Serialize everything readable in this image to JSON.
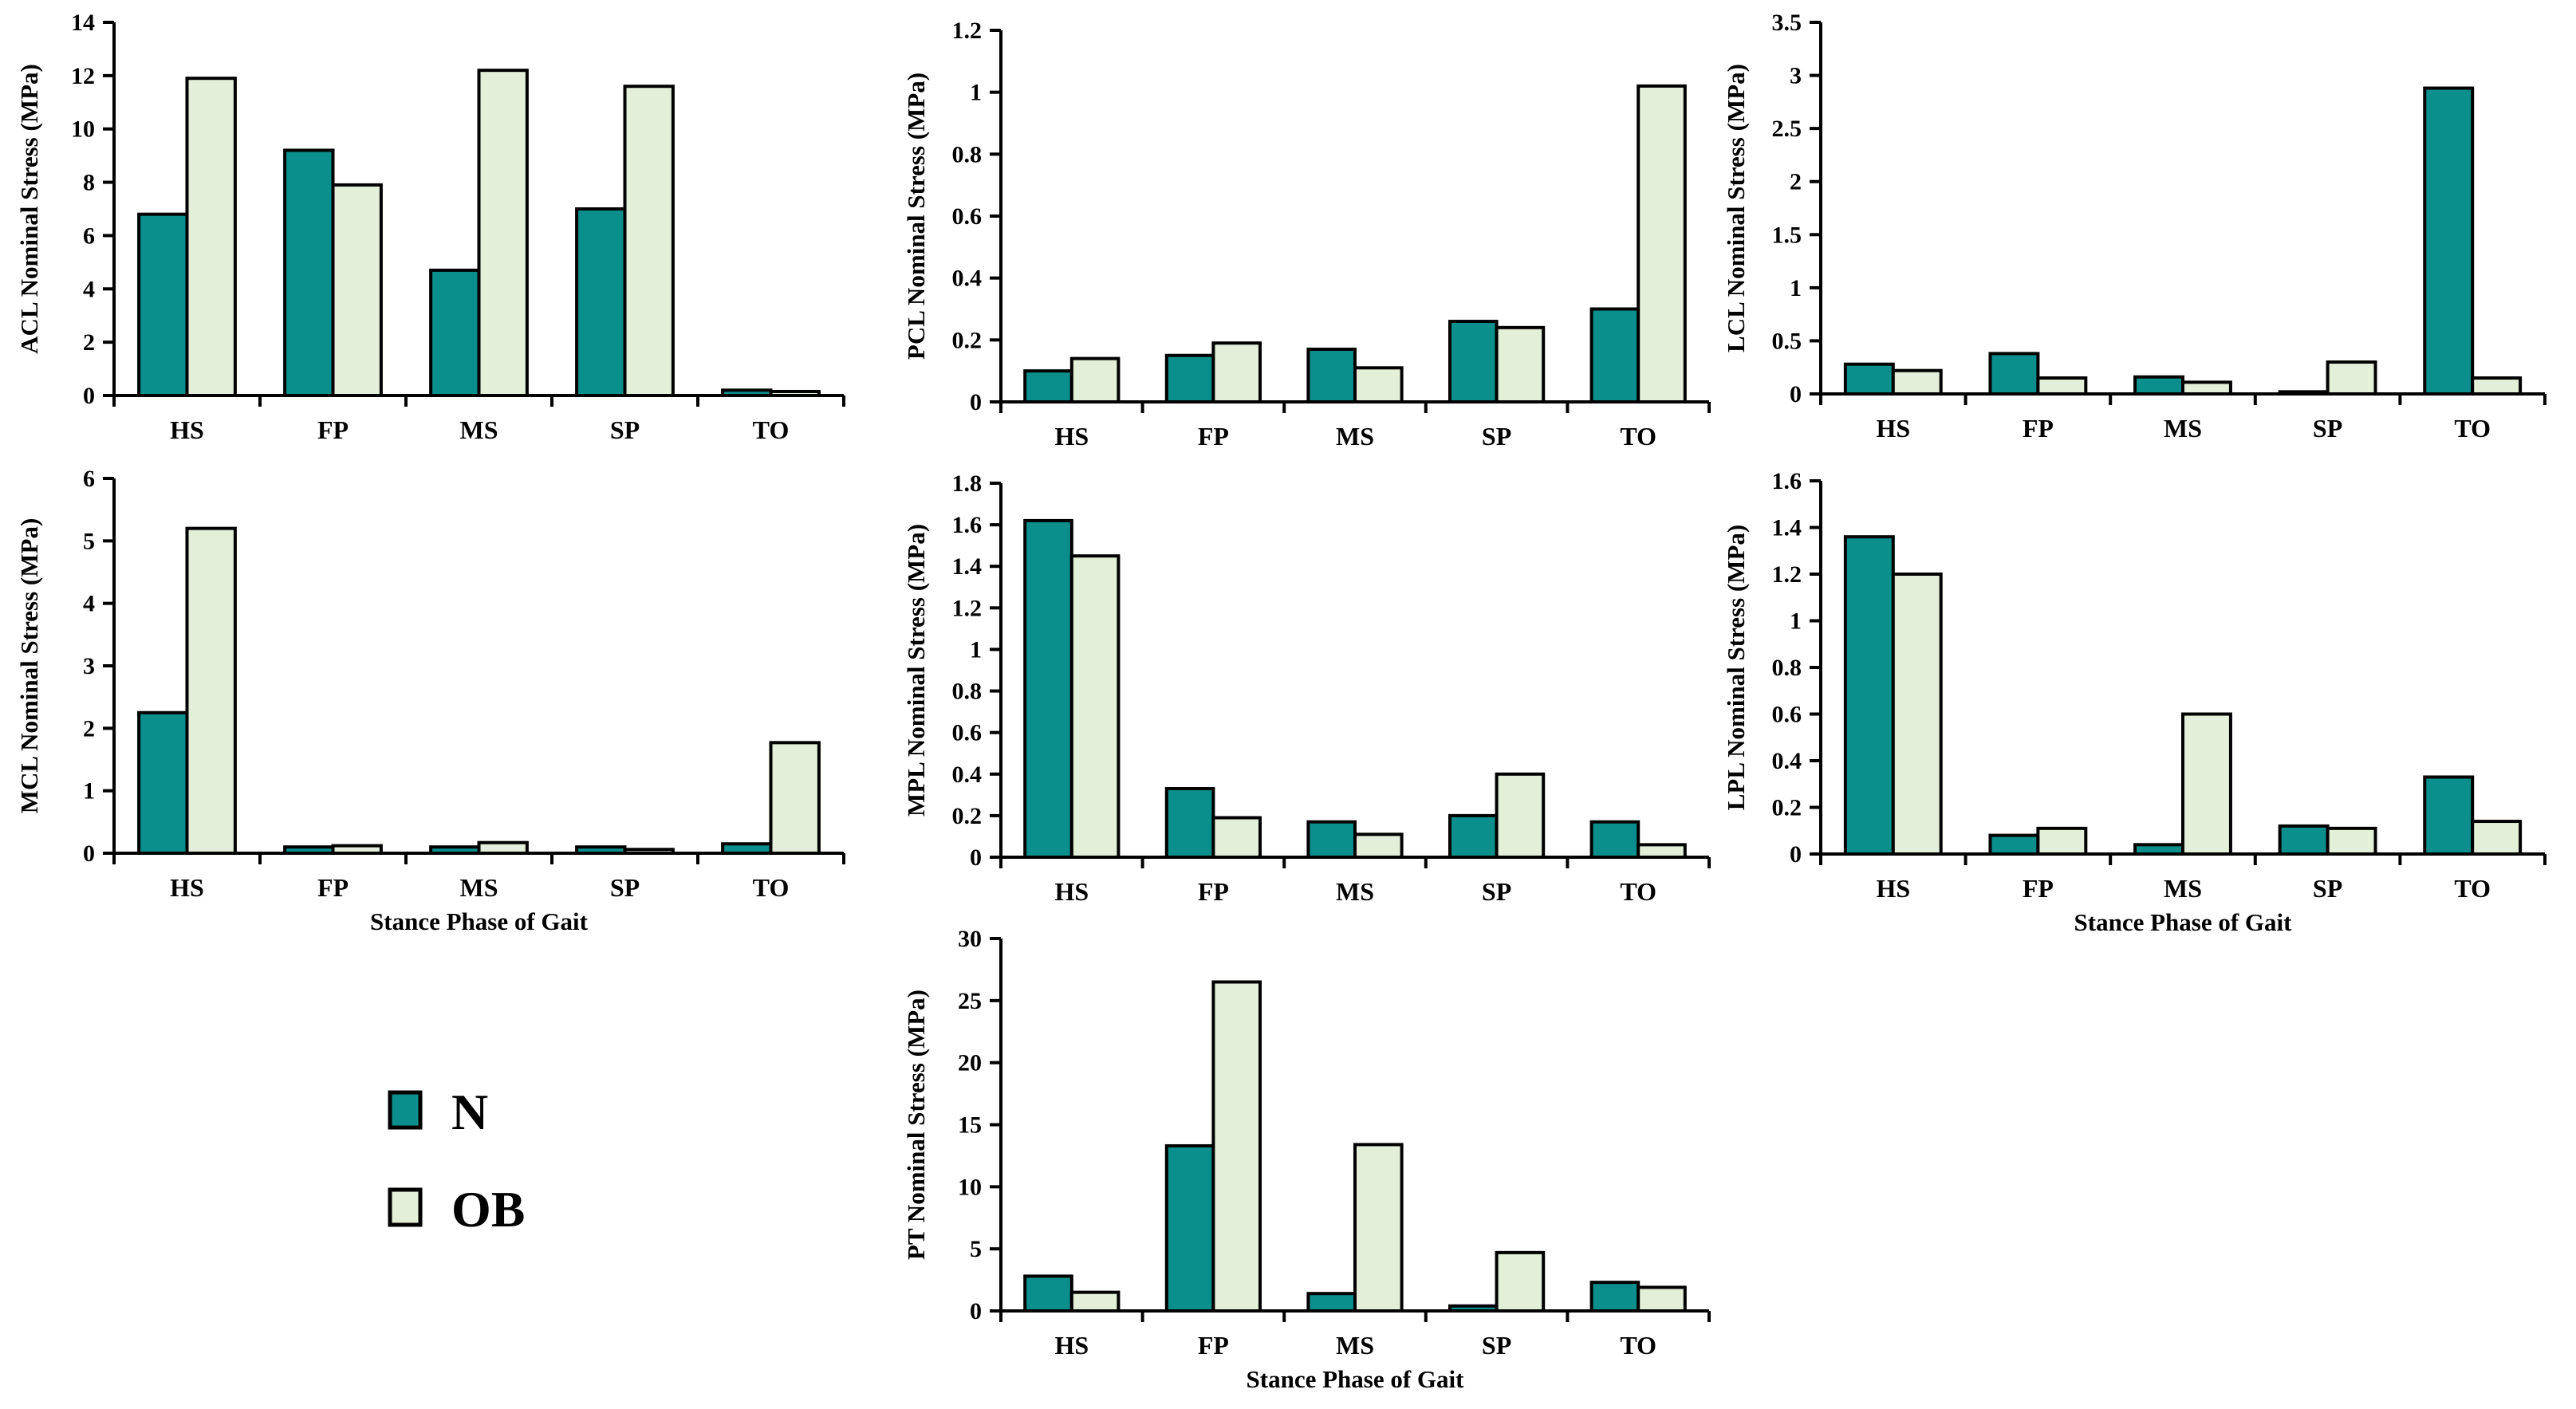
{
  "colors": {
    "N": "#0b8f8c",
    "OB": "#e3efd8",
    "stroke": "#000000"
  },
  "legend": {
    "entries": [
      {
        "name": "N",
        "color": "#0b8f8c"
      },
      {
        "name": "OB",
        "color": "#e3efd8"
      }
    ]
  },
  "chart_data": [
    {
      "id": "acl",
      "type": "bar",
      "ylabel": "ACL Nominal Stress (MPa)",
      "xlabel": "",
      "categories": [
        "HS",
        "FP",
        "MS",
        "SP",
        "TO"
      ],
      "ylim": [
        0,
        14
      ],
      "yticks": [
        0,
        2,
        4,
        6,
        8,
        10,
        12,
        14
      ],
      "ytick_labels": [
        "0",
        "2",
        "4",
        "6",
        "8",
        "10",
        "12",
        "14"
      ],
      "series": [
        {
          "name": "N",
          "values": [
            6.8,
            9.2,
            4.7,
            7.0,
            0.2
          ]
        },
        {
          "name": "OB",
          "values": [
            11.9,
            7.9,
            12.2,
            11.6,
            0.15
          ]
        }
      ]
    },
    {
      "id": "pcl",
      "type": "bar",
      "ylabel": "PCL Nominal Stress (MPa)",
      "xlabel": "",
      "categories": [
        "HS",
        "FP",
        "MS",
        "SP",
        "TO"
      ],
      "ylim": [
        0,
        1.2
      ],
      "yticks": [
        0,
        0.2,
        0.4,
        0.6,
        0.8,
        1,
        1.2
      ],
      "ytick_labels": [
        "0",
        "0.2",
        "0.4",
        "0.6",
        "0.8",
        "1",
        "1.2"
      ],
      "series": [
        {
          "name": "N",
          "values": [
            0.1,
            0.15,
            0.17,
            0.26,
            0.3
          ]
        },
        {
          "name": "OB",
          "values": [
            0.14,
            0.19,
            0.11,
            0.24,
            1.02
          ]
        }
      ]
    },
    {
      "id": "lcl",
      "type": "bar",
      "ylabel": "LCL Nominal Stress (MPa)",
      "xlabel": "",
      "categories": [
        "HS",
        "FP",
        "MS",
        "SP",
        "TO"
      ],
      "ylim": [
        0,
        3.5
      ],
      "yticks": [
        0,
        0.5,
        1,
        1.5,
        2,
        2.5,
        3,
        3.5
      ],
      "ytick_labels": [
        "0",
        "0.5",
        "1",
        "1.5",
        "2",
        "2.5",
        "3",
        "3.5"
      ],
      "series": [
        {
          "name": "N",
          "values": [
            0.28,
            0.38,
            0.16,
            0.02,
            2.88
          ]
        },
        {
          "name": "OB",
          "values": [
            0.22,
            0.15,
            0.11,
            0.3,
            0.15
          ]
        }
      ]
    },
    {
      "id": "mcl",
      "type": "bar",
      "ylabel": "MCL Nominal Stress (MPa)",
      "xlabel": "Stance Phase of Gait",
      "categories": [
        "HS",
        "FP",
        "MS",
        "SP",
        "TO"
      ],
      "ylim": [
        0,
        6
      ],
      "yticks": [
        0,
        1,
        2,
        3,
        4,
        5,
        6
      ],
      "ytick_labels": [
        "0",
        "1",
        "2",
        "3",
        "4",
        "5",
        "6"
      ],
      "series": [
        {
          "name": "N",
          "values": [
            2.25,
            0.1,
            0.1,
            0.1,
            0.15
          ]
        },
        {
          "name": "OB",
          "values": [
            5.2,
            0.12,
            0.17,
            0.06,
            1.77
          ]
        }
      ]
    },
    {
      "id": "mpl",
      "type": "bar",
      "ylabel": "MPL Nominal Stress (MPa)",
      "xlabel": "",
      "categories": [
        "HS",
        "FP",
        "MS",
        "SP",
        "TO"
      ],
      "ylim": [
        0,
        1.8
      ],
      "yticks": [
        0,
        0.2,
        0.4,
        0.6,
        0.8,
        1,
        1.2,
        1.4,
        1.6,
        1.8
      ],
      "ytick_labels": [
        "0",
        "0.2",
        "0.4",
        "0.6",
        "0.8",
        "1",
        "1.2",
        "1.4",
        "1.6",
        "1.8"
      ],
      "series": [
        {
          "name": "N",
          "values": [
            1.62,
            0.33,
            0.17,
            0.2,
            0.17
          ]
        },
        {
          "name": "OB",
          "values": [
            1.45,
            0.19,
            0.11,
            0.4,
            0.06
          ]
        }
      ]
    },
    {
      "id": "lpl",
      "type": "bar",
      "ylabel": "LPL Nominal Stress (MPa)",
      "xlabel": "Stance Phase of Gait",
      "categories": [
        "HS",
        "FP",
        "MS",
        "SP",
        "TO"
      ],
      "ylim": [
        0,
        1.6
      ],
      "yticks": [
        0,
        0.2,
        0.4,
        0.6,
        0.8,
        1,
        1.2,
        1.4,
        1.6
      ],
      "ytick_labels": [
        "0",
        "0.2",
        "0.4",
        "0.6",
        "0.8",
        "1",
        "1.2",
        "1.4",
        "1.6"
      ],
      "series": [
        {
          "name": "N",
          "values": [
            1.36,
            0.08,
            0.04,
            0.12,
            0.33
          ]
        },
        {
          "name": "OB",
          "values": [
            1.2,
            0.11,
            0.6,
            0.11,
            0.14
          ]
        }
      ]
    },
    {
      "id": "pt",
      "type": "bar",
      "ylabel": "PT Nominal Stress (MPa)",
      "xlabel": "Stance Phase of Gait",
      "categories": [
        "HS",
        "FP",
        "MS",
        "SP",
        "TO"
      ],
      "ylim": [
        0,
        30
      ],
      "yticks": [
        0,
        5,
        10,
        15,
        20,
        25,
        30
      ],
      "ytick_labels": [
        "0",
        "5",
        "10",
        "15",
        "20",
        "25",
        "30"
      ],
      "series": [
        {
          "name": "N",
          "values": [
            2.8,
            13.3,
            1.4,
            0.4,
            2.3
          ]
        },
        {
          "name": "OB",
          "values": [
            1.5,
            26.5,
            13.4,
            4.7,
            1.9
          ]
        }
      ]
    }
  ]
}
